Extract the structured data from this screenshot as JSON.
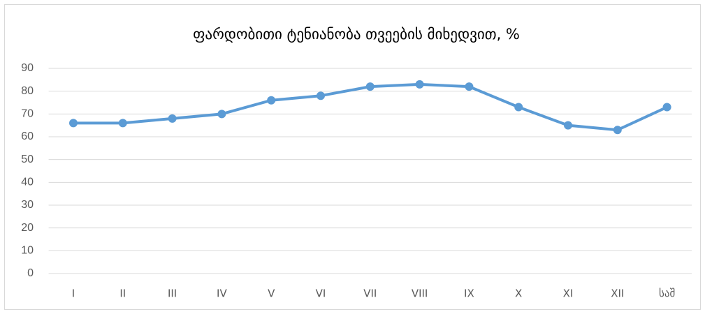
{
  "chart_data": {
    "type": "line",
    "title": "ფარდობითი ტენიანობა თვეების მიხედვით, %",
    "categories": [
      "I",
      "II",
      "III",
      "IV",
      "V",
      "VI",
      "VII",
      "VIII",
      "IX",
      "X",
      "XI",
      "XII",
      "საშ"
    ],
    "values": [
      66,
      66,
      68,
      70,
      76,
      78,
      82,
      83,
      82,
      73,
      65,
      63,
      73
    ],
    "color": "#5b9bd5",
    "ylim": [
      0,
      90
    ],
    "yticks": [
      0,
      10,
      20,
      30,
      40,
      50,
      60,
      70,
      80,
      90
    ],
    "grid": true
  }
}
